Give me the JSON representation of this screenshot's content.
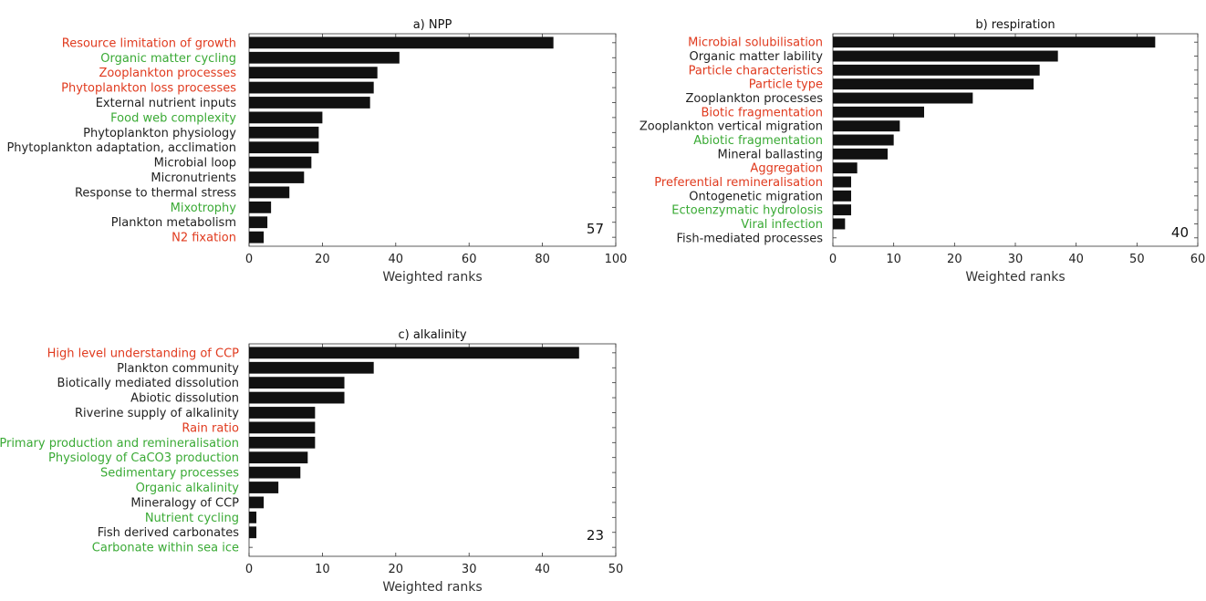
{
  "colors": {
    "red": "#e03a1e",
    "green": "#3aaa35",
    "black": "#222222",
    "bar": "#111111"
  },
  "chart_data": [
    {
      "type": "bar",
      "orientation": "horizontal",
      "title": "a) NPP",
      "xlabel": "Weighted ranks",
      "xlim": [
        0,
        100
      ],
      "xticks": [
        0,
        20,
        40,
        60,
        80,
        100
      ],
      "annotation": "57",
      "categories": [
        "Resource limitation of growth",
        "Organic matter cycling",
        "Zooplankton processes",
        "Phytoplankton loss processes",
        "External nutrient inputs",
        "Food web complexity",
        "Phytoplankton physiology",
        "Phytoplankton adaptation, acclimation",
        "Microbial loop",
        "Micronutrients",
        "Response to thermal stress",
        "Mixotrophy",
        "Plankton metabolism",
        "N2 fixation"
      ],
      "label_colors": [
        "red",
        "green",
        "red",
        "red",
        "black",
        "green",
        "black",
        "black",
        "black",
        "black",
        "black",
        "green",
        "black",
        "red"
      ],
      "values": [
        83,
        41,
        35,
        34,
        33,
        20,
        19,
        19,
        17,
        15,
        11,
        6,
        5,
        4
      ]
    },
    {
      "type": "bar",
      "orientation": "horizontal",
      "title": "b) respiration",
      "xlabel": "Weighted ranks",
      "xlim": [
        0,
        60
      ],
      "xticks": [
        0,
        10,
        20,
        30,
        40,
        50,
        60
      ],
      "annotation": "40",
      "categories": [
        "Microbial solubilisation",
        "Organic matter lability",
        "Particle characteristics",
        "Particle type",
        "Zooplankton processes",
        "Biotic fragmentation",
        "Zooplankton vertical migration",
        "Abiotic fragmentation",
        "Mineral ballasting",
        "Aggregation",
        "Preferential remineralisation",
        "Ontogenetic migration",
        "Ectoenzymatic hydrolosis",
        "Viral infection",
        "Fish-mediated processes"
      ],
      "label_colors": [
        "red",
        "black",
        "red",
        "red",
        "black",
        "red",
        "black",
        "green",
        "black",
        "red",
        "red",
        "black",
        "green",
        "green",
        "black"
      ],
      "values": [
        53,
        37,
        34,
        33,
        23,
        15,
        11,
        10,
        9,
        4,
        3,
        3,
        3,
        2,
        0
      ]
    },
    {
      "type": "bar",
      "orientation": "horizontal",
      "title": "c) alkalinity",
      "xlabel": "Weighted ranks",
      "xlim": [
        0,
        50
      ],
      "xticks": [
        0,
        10,
        20,
        30,
        40,
        50
      ],
      "annotation": "23",
      "categories": [
        "High level understanding of CCP",
        "Plankton community",
        "Biotically mediated dissolution",
        "Abiotic dissolution",
        "Riverine supply of alkalinity",
        "Rain ratio",
        "Primary production and remineralisation",
        "Physiology of CaCO3 production",
        "Sedimentary processes",
        "Organic alkalinity",
        "Mineralogy of CCP",
        "Nutrient cycling",
        "Fish derived carbonates",
        "Carbonate within sea ice"
      ],
      "label_colors": [
        "red",
        "black",
        "black",
        "black",
        "black",
        "red",
        "green",
        "green",
        "green",
        "green",
        "black",
        "green",
        "black",
        "green"
      ],
      "values": [
        45,
        17,
        13,
        13,
        9,
        9,
        9,
        8,
        7,
        4,
        2,
        1,
        1,
        0
      ]
    }
  ]
}
